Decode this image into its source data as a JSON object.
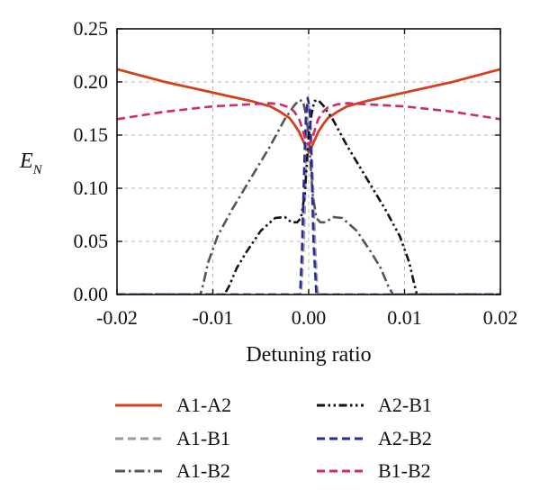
{
  "chart_data": {
    "type": "line",
    "xlabel": "Detuning ratio",
    "ylabel": "E",
    "ylabel_sub": "N",
    "xlim": [
      -0.02,
      0.02
    ],
    "ylim": [
      0,
      0.25
    ],
    "x_ticks": [
      -0.02,
      -0.01,
      0.0,
      0.01,
      0.02
    ],
    "x_tick_labels": [
      "-0.02",
      "-0.01",
      "0.00",
      "0.01",
      "0.02"
    ],
    "y_ticks": [
      0.0,
      0.05,
      0.1,
      0.15,
      0.2,
      0.25
    ],
    "y_tick_labels": [
      "0.00",
      "0.05",
      "0.10",
      "0.15",
      "0.20",
      "0.25"
    ],
    "grid": true,
    "legend_position": "bottom",
    "series": [
      {
        "name": "A1-A2",
        "color": "#d2401e",
        "dash": "solid",
        "x": [
          -0.02,
          -0.015,
          -0.01,
          -0.006,
          -0.004,
          -0.003,
          -0.002,
          -0.0015,
          -0.001,
          -0.0007,
          -0.0004,
          -0.0002,
          0.0,
          0.0002,
          0.0004,
          0.0007,
          0.001,
          0.0015,
          0.002,
          0.003,
          0.004,
          0.006,
          0.01,
          0.015,
          0.02
        ],
        "y": [
          0.212,
          0.2,
          0.19,
          0.182,
          0.177,
          0.172,
          0.166,
          0.16,
          0.153,
          0.147,
          0.141,
          0.137,
          0.134,
          0.137,
          0.141,
          0.147,
          0.153,
          0.16,
          0.166,
          0.172,
          0.177,
          0.182,
          0.19,
          0.2,
          0.212
        ]
      },
      {
        "name": "A1-B1",
        "color": "#999999",
        "dash": "dashed",
        "x": [
          -0.02,
          -0.0008,
          -0.0005,
          -0.0003,
          -0.0001,
          0.0001,
          0.0003,
          0.0005,
          0.0007,
          0.0009,
          0.001,
          0.02
        ],
        "y": [
          0.0,
          0.0,
          0.05,
          0.12,
          0.175,
          0.178,
          0.14,
          0.09,
          0.04,
          0.005,
          0.0,
          0.0
        ]
      },
      {
        "name": "A1-B2",
        "color": "#555555",
        "dash": "dashdot",
        "x": [
          -0.02,
          -0.0113,
          -0.011,
          -0.0105,
          -0.0095,
          -0.008,
          -0.006,
          -0.004,
          -0.0025,
          -0.0015,
          -0.001,
          -0.0006,
          -0.0003,
          0.0,
          0.0004,
          0.0008,
          0.0012,
          0.0018,
          0.0025,
          0.0035,
          0.005,
          0.0065,
          0.0075,
          0.0083,
          0.0088,
          0.02
        ],
        "y": [
          0.0,
          0.0,
          0.01,
          0.03,
          0.055,
          0.08,
          0.11,
          0.14,
          0.165,
          0.178,
          0.183,
          0.182,
          0.17,
          0.15,
          0.095,
          0.072,
          0.068,
          0.068,
          0.073,
          0.072,
          0.06,
          0.04,
          0.025,
          0.008,
          0.0,
          0.0
        ]
      },
      {
        "name": "A2-B1",
        "color": "#111111",
        "dash": "dashdotdot",
        "x": [
          -0.02,
          -0.0088,
          -0.0083,
          -0.0075,
          -0.0065,
          -0.005,
          -0.0035,
          -0.0025,
          -0.0018,
          -0.0012,
          -0.0008,
          -0.0004,
          0.0,
          0.0003,
          0.0006,
          0.001,
          0.0015,
          0.0025,
          0.004,
          0.006,
          0.008,
          0.0095,
          0.0105,
          0.011,
          0.0113,
          0.02
        ],
        "y": [
          0.0,
          0.0,
          0.008,
          0.025,
          0.04,
          0.06,
          0.072,
          0.073,
          0.068,
          0.068,
          0.072,
          0.095,
          0.15,
          0.17,
          0.182,
          0.183,
          0.178,
          0.165,
          0.14,
          0.11,
          0.08,
          0.055,
          0.03,
          0.01,
          0.0,
          0.0
        ]
      },
      {
        "name": "A2-B2",
        "color": "#2a2aa0",
        "dash": "dashed",
        "x": [
          -0.02,
          -0.0009,
          -0.0007,
          -0.0005,
          -0.0003,
          -0.0001,
          0.0001,
          0.0003,
          0.0005,
          0.0008,
          0.02
        ],
        "y": [
          0.0,
          0.0,
          0.04,
          0.11,
          0.165,
          0.185,
          0.175,
          0.12,
          0.05,
          0.0,
          0.0
        ]
      },
      {
        "name": "B1-B2",
        "color": "#d02a6e",
        "dash": "dashed",
        "x": [
          -0.02,
          -0.015,
          -0.01,
          -0.006,
          -0.004,
          -0.003,
          -0.002,
          -0.0015,
          -0.001,
          -0.0007,
          -0.0004,
          -0.0002,
          0.0,
          0.0002,
          0.0004,
          0.0007,
          0.001,
          0.0015,
          0.002,
          0.003,
          0.004,
          0.006,
          0.01,
          0.015,
          0.02
        ],
        "y": [
          0.165,
          0.172,
          0.177,
          0.179,
          0.18,
          0.179,
          0.176,
          0.172,
          0.165,
          0.157,
          0.148,
          0.143,
          0.141,
          0.143,
          0.148,
          0.157,
          0.165,
          0.172,
          0.176,
          0.179,
          0.18,
          0.179,
          0.177,
          0.172,
          0.165
        ]
      }
    ]
  }
}
